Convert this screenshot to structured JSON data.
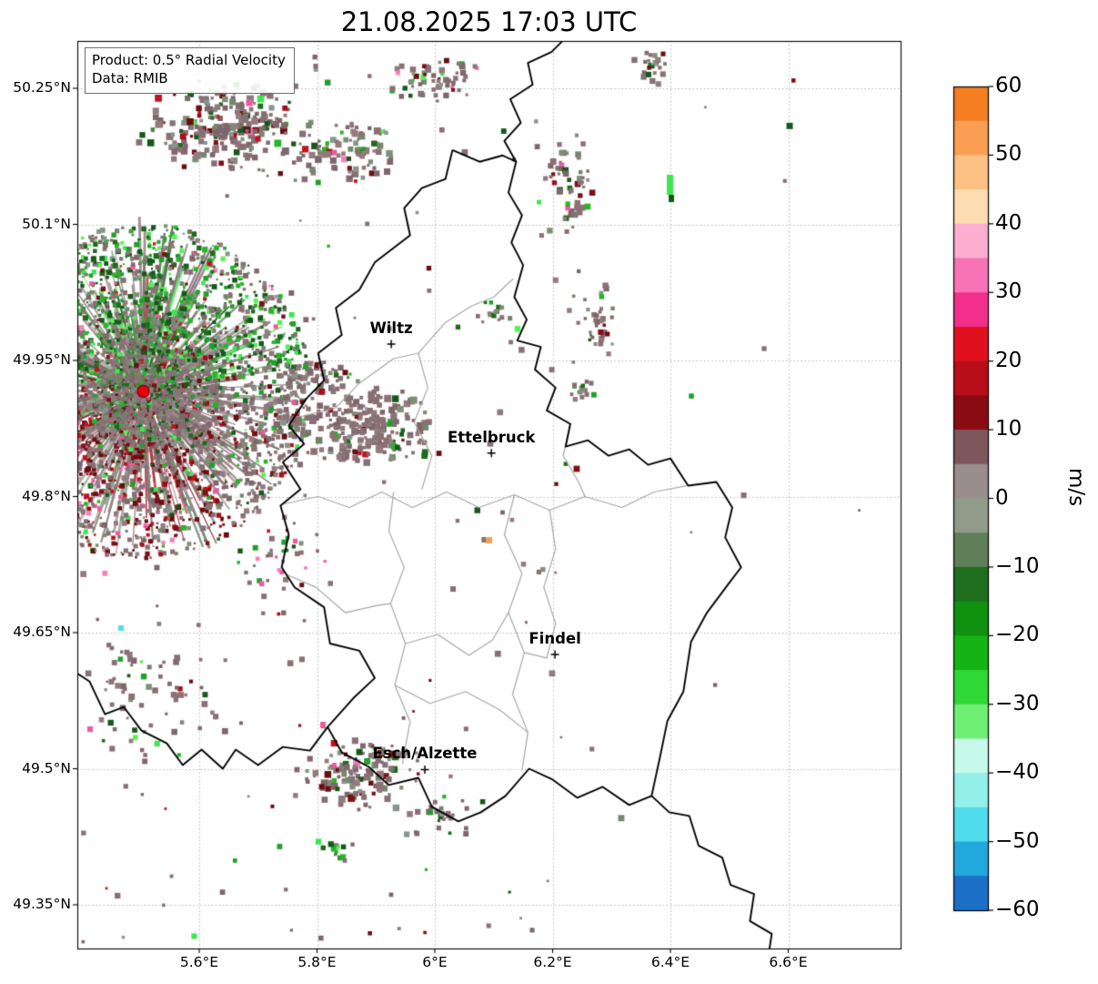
{
  "title": "21.08.2025 17:03 UTC",
  "info_box": {
    "product": "Product: 0.5° Radial Velocity",
    "data_source": "Data: RMIB"
  },
  "map": {
    "lat_ticks": [
      {
        "label": "50.25°N",
        "value": 50.25
      },
      {
        "label": "50.1°N",
        "value": 50.1
      },
      {
        "label": "49.95°N",
        "value": 49.95
      },
      {
        "label": "49.8°N",
        "value": 49.8
      },
      {
        "label": "49.65°N",
        "value": 49.65
      },
      {
        "label": "49.5°N",
        "value": 49.5
      },
      {
        "label": "49.35°N",
        "value": 49.35
      }
    ],
    "lon_ticks": [
      {
        "label": "5.6°E",
        "value": 5.6
      },
      {
        "label": "5.8°E",
        "value": 5.8
      },
      {
        "label": "6°E",
        "value": 6.0
      },
      {
        "label": "6.2°E",
        "value": 6.2
      },
      {
        "label": "6.4°E",
        "value": 6.4
      },
      {
        "label": "6.6°E",
        "value": 6.6
      }
    ],
    "cities": [
      {
        "name": "Wiltz",
        "lon": 5.926,
        "lat": 49.968
      },
      {
        "name": "Ettelbruck",
        "lon": 6.096,
        "lat": 49.848
      },
      {
        "name": "Findel",
        "lon": 6.204,
        "lat": 49.626
      },
      {
        "name": "Esch/Alzette",
        "lon": 5.983,
        "lat": 49.499
      }
    ],
    "radar_site": {
      "lon": 5.505,
      "lat": 49.916,
      "marker_color": "#e8000b"
    }
  },
  "colorbar": {
    "unit": "m/s",
    "max": 60,
    "min": -60,
    "band_step_mps": 5,
    "tick_values": [
      60,
      50,
      40,
      30,
      20,
      10,
      0,
      -10,
      -20,
      -30,
      -40,
      -50,
      -60
    ],
    "tick_labels": [
      "60",
      "50",
      "40",
      "30",
      "20",
      "10",
      "0",
      "−10",
      "−20",
      "−30",
      "−40",
      "−50",
      "−60"
    ],
    "band_colors_top_to_bottom": [
      "#f57e20",
      "#f99e52",
      "#fcc183",
      "#fddcb2",
      "#fbaed0",
      "#f873b6",
      "#f2308c",
      "#e0101f",
      "#b80e19",
      "#8a0c12",
      "#7e575d",
      "#9a8d8d",
      "#909c89",
      "#5f7f59",
      "#1d6e1d",
      "#109110",
      "#14b414",
      "#30d836",
      "#70ef75",
      "#c6f9e9",
      "#92f0e9",
      "#50dcec",
      "#21a8dd",
      "#1b6fc7"
    ]
  },
  "echo_palette": {
    "mauve": [
      "#8b7074",
      "#857075",
      "#927b7e",
      "#7f666b"
    ],
    "gray_green": [
      "#7e8f78",
      "#74866d",
      "#87958e"
    ],
    "dark_green": [
      "#1d6b1d",
      "#14591a"
    ],
    "green": [
      "#1fa02c",
      "#28b428"
    ],
    "bright_green": [
      "#3be84f",
      "#58ef58"
    ],
    "dark_red": [
      "#7c1014",
      "#6b0d10"
    ],
    "red": [
      "#c01220",
      "#a30f18"
    ],
    "pink": [
      "#f4579e",
      "#fa7fb8"
    ],
    "orange": [
      "#f5a052"
    ],
    "cyan": [
      "#55dce8"
    ]
  }
}
